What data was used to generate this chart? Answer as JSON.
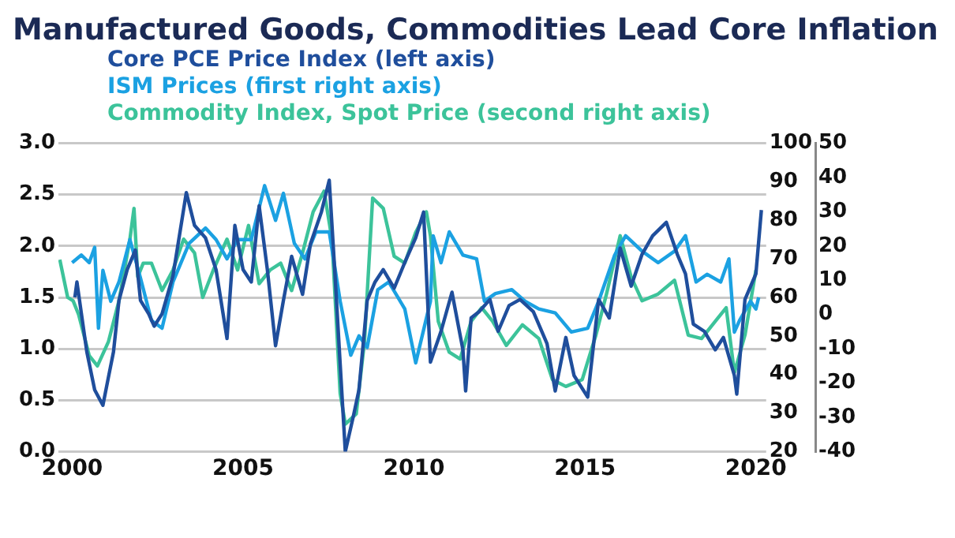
{
  "chart_data": {
    "type": "line",
    "title": "Manufactured Goods, Commodities Lead Core Inflation",
    "xlim": [
      1999.6,
      2020.3
    ],
    "xticks": [
      2000,
      2005,
      2010,
      2015,
      2020
    ],
    "ylim": [
      0,
      3
    ],
    "yticks": [
      {
        "value": 0,
        "label": "0.0"
      },
      0.5,
      {
        "value": 1,
        "label": "1.0"
      },
      1.5,
      {
        "value": 2,
        "label": "2.0"
      },
      2.5,
      {
        "value": 3,
        "label": "3.0"
      }
    ],
    "y2lim": [
      20,
      100
    ],
    "y2ticks": [
      20,
      30,
      40,
      50,
      60,
      70,
      80,
      90,
      100
    ],
    "y3lim": [
      -40,
      50
    ],
    "y3ticks": [
      -40,
      -30,
      -20,
      -10,
      0,
      10,
      20,
      30,
      40,
      50
    ],
    "grid": "y",
    "legend": "top left",
    "series": [
      {
        "name": "Core PCE Price Index (left axis)",
        "color": "#1f4e9c",
        "axis": "y",
        "x": [
          2000.08,
          2000.14,
          2000.43,
          2000.66,
          2000.9,
          2001.06,
          2001.21,
          2001.37,
          2001.61,
          2001.85,
          2002.0,
          2002.24,
          2002.4,
          2002.63,
          2002.95,
          2003.34,
          2003.58,
          2003.9,
          2004.21,
          2004.53,
          2004.76,
          2005.0,
          2005.24,
          2005.47,
          2005.71,
          2005.95,
          2006.18,
          2006.42,
          2006.74,
          2006.97,
          2007.29,
          2007.52,
          2007.68,
          2007.84,
          2007.99,
          2008.23,
          2008.39,
          2008.63,
          2008.86,
          2009.1,
          2009.42,
          2009.73,
          2010.05,
          2010.28,
          2010.48,
          2010.79,
          2011.11,
          2011.43,
          2011.51,
          2011.67,
          2011.9,
          2012.22,
          2012.46,
          2012.78,
          2013.1,
          2013.49,
          2013.89,
          2014.13,
          2014.44,
          2014.68,
          2015.08,
          2015.4,
          2015.71,
          2016.03,
          2016.35,
          2016.67,
          2016.98,
          2017.38,
          2017.7,
          2017.94,
          2018.17,
          2018.49,
          2018.81,
          2019.05,
          2019.37,
          2019.44,
          2019.68,
          2020.0,
          2020.16
        ],
        "values": [
          1.5,
          1.65,
          0.97,
          0.6,
          0.45,
          0.72,
          0.97,
          1.47,
          1.77,
          1.96,
          1.47,
          1.34,
          1.22,
          1.34,
          1.71,
          2.52,
          2.2,
          2.08,
          1.77,
          1.1,
          2.2,
          1.77,
          1.65,
          2.39,
          1.77,
          1.03,
          1.47,
          1.9,
          1.53,
          2.02,
          2.33,
          2.64,
          1.77,
          0.85,
          0.0,
          0.35,
          0.6,
          1.47,
          1.65,
          1.77,
          1.59,
          1.84,
          2.08,
          2.33,
          0.87,
          1.17,
          1.55,
          0.99,
          0.59,
          1.3,
          1.36,
          1.48,
          1.17,
          1.42,
          1.48,
          1.36,
          1.05,
          0.59,
          1.11,
          0.74,
          0.53,
          1.48,
          1.3,
          1.98,
          1.61,
          1.92,
          2.1,
          2.23,
          1.92,
          1.73,
          1.24,
          1.17,
          0.99,
          1.11,
          0.74,
          0.56,
          1.48,
          1.73,
          2.35
        ]
      },
      {
        "name": "ISM Prices (first right axis)",
        "color": "#1ba1e2",
        "axis": "y2",
        "x": [
          2000.0,
          2000.27,
          2000.5,
          2000.66,
          2000.77,
          2000.9,
          2001.13,
          2001.37,
          2001.69,
          2002.0,
          2002.32,
          2002.63,
          2002.95,
          2003.42,
          2003.9,
          2004.21,
          2004.53,
          2004.84,
          2005.24,
          2005.63,
          2005.95,
          2006.18,
          2006.5,
          2006.81,
          2007.13,
          2007.52,
          2007.84,
          2008.15,
          2008.39,
          2008.63,
          2008.94,
          2009.26,
          2009.73,
          2010.05,
          2010.48,
          2010.56,
          2010.79,
          2011.03,
          2011.43,
          2011.83,
          2012.06,
          2012.38,
          2012.86,
          2013.25,
          2013.65,
          2014.13,
          2014.6,
          2015.08,
          2015.4,
          2015.87,
          2016.19,
          2016.67,
          2017.14,
          2017.62,
          2017.94,
          2018.25,
          2018.57,
          2018.97,
          2019.21,
          2019.37,
          2019.52,
          2019.84,
          2020.0,
          2020.08
        ],
        "values": [
          69,
          71,
          69,
          73,
          52,
          67,
          59,
          64,
          75,
          65,
          54,
          52,
          64,
          74,
          78,
          75,
          70,
          75,
          75,
          89,
          80,
          87,
          74,
          70,
          77,
          77,
          59,
          45,
          50,
          47,
          62,
          64,
          57,
          43,
          59,
          76,
          69,
          77,
          71,
          70,
          59,
          61,
          62,
          59,
          57,
          56,
          51,
          52,
          59,
          71,
          76,
          72,
          69,
          72,
          76,
          64,
          66,
          64,
          70,
          51,
          54,
          59,
          57,
          60
        ]
      },
      {
        "name": "Commodity Index, Spot Price (second right axis)",
        "color": "#3cc39a",
        "axis": "y3",
        "x": [
          1999.64,
          1999.87,
          2000.03,
          2000.19,
          2000.5,
          2000.74,
          2001.06,
          2001.37,
          2001.69,
          2001.81,
          2001.92,
          2002.08,
          2002.32,
          2002.63,
          2002.95,
          2003.26,
          2003.58,
          2003.82,
          2004.13,
          2004.53,
          2004.84,
          2005.16,
          2005.47,
          2005.79,
          2006.1,
          2006.42,
          2006.74,
          2007.05,
          2007.37,
          2007.6,
          2007.84,
          2007.99,
          2008.31,
          2008.55,
          2008.79,
          2009.1,
          2009.42,
          2009.73,
          2010.05,
          2010.36,
          2010.48,
          2010.71,
          2011.03,
          2011.35,
          2011.67,
          2011.98,
          2012.3,
          2012.7,
          2013.17,
          2013.65,
          2014.05,
          2014.44,
          2014.92,
          2015.32,
          2015.63,
          2016.03,
          2016.35,
          2016.67,
          2017.14,
          2017.62,
          2018.02,
          2018.41,
          2018.81,
          2019.13,
          2019.37,
          2019.68,
          2020.0
        ],
        "values": [
          16,
          5,
          4,
          0,
          -12,
          -15,
          -8,
          4,
          22,
          31,
          11,
          15,
          15,
          7,
          13,
          22,
          18,
          5,
          13,
          22,
          13,
          26,
          9,
          13,
          15,
          7,
          18,
          30,
          36,
          22,
          -23,
          -32,
          -29,
          -8,
          34,
          31,
          17,
          15,
          24,
          30,
          23,
          -2,
          -11,
          -13,
          -2,
          2,
          -2,
          -9,
          -3,
          -7,
          -19,
          -21,
          -19,
          -6,
          6,
          23,
          11,
          4,
          6,
          10,
          -6,
          -7,
          -2,
          2,
          -17,
          -6,
          13
        ]
      }
    ]
  }
}
